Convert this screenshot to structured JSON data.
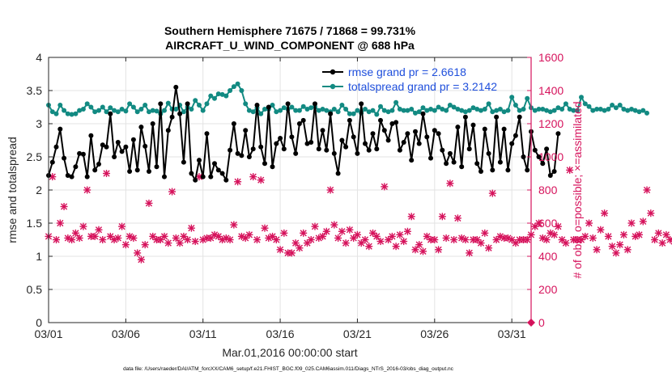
{
  "chart_data": {
    "type": "line",
    "title": [
      "Southern Hemisphere 71675 / 71868 = 99.731%",
      "AIRCRAFT_U_WIND_COMPONENT @ 688 hPa"
    ],
    "xlabel": "Mar.01,2016 00:00:00 start",
    "ylabel_left": "rmse and totalspread",
    "ylabel_right": "# of obs: o=possible; ×=assimilated",
    "footer": "data file: /Users/raeder/DAI/ATM_forcXX/CAM6_setup/f.e21.FHIST_BGC.f09_025.CAM6assim.011/Diags_NTrS_2016-03/obs_diag_output.nc",
    "xlim": [
      0,
      31.25
    ],
    "ylim_left": [
      0,
      4
    ],
    "ylim_right": [
      0,
      1600
    ],
    "xticks": [
      0,
      5,
      10,
      15,
      20,
      25,
      30
    ],
    "xtick_labels": [
      "03/01",
      "03/06",
      "03/11",
      "03/16",
      "03/21",
      "03/26",
      "03/31"
    ],
    "yticks_left": [
      0,
      0.5,
      1,
      1.5,
      2,
      2.5,
      3,
      3.5,
      4
    ],
    "ytick_labels_left": [
      "0",
      "0.5",
      "1",
      "1.5",
      "2",
      "2.5",
      "3",
      "3.5",
      "4"
    ],
    "yticks_right": [
      0,
      200,
      400,
      600,
      800,
      1000,
      1200,
      1400,
      1600
    ],
    "ytick_labels_right": [
      "0",
      "200",
      "400",
      "600",
      "800",
      "1000",
      "1200",
      "1400",
      "1600"
    ],
    "x_step_days": 0.25,
    "grid": true,
    "legend_position": "top-right",
    "colors": {
      "rmse": "#000000",
      "spread": "#128a82",
      "obs": "#d6135c",
      "legend_text": "#1f4fdc",
      "right_axis": "#d6135c",
      "grid": "#e3e3e3"
    },
    "series": [
      {
        "name": "rmse grand pr = 2.6618",
        "axis": "left",
        "values": [
          2.22,
          2.42,
          2.65,
          2.92,
          2.48,
          2.22,
          2.2,
          2.35,
          2.55,
          2.54,
          2.2,
          2.82,
          2.3,
          2.39,
          2.68,
          2.65,
          3.15,
          2.5,
          2.72,
          2.58,
          2.65,
          2.28,
          2.76,
          2.3,
          2.95,
          2.66,
          2.28,
          3.0,
          2.35,
          3.3,
          2.2,
          2.9,
          3.1,
          3.55,
          3.15,
          2.42,
          3.3,
          2.25,
          2.15,
          2.45,
          2.2,
          2.85,
          2.2,
          2.4,
          2.3,
          2.25,
          2.15,
          2.6,
          3.0,
          2.55,
          2.52,
          2.9,
          2.5,
          2.62,
          3.28,
          2.65,
          2.4,
          3.25,
          2.35,
          2.7,
          2.78,
          2.62,
          3.3,
          2.8,
          2.55,
          3.0,
          3.05,
          2.7,
          2.72,
          3.3,
          2.62,
          2.9,
          2.6,
          3.15,
          2.55,
          2.25,
          2.75,
          2.65,
          3.05,
          2.8,
          2.55,
          3.3,
          2.7,
          2.6,
          2.85,
          2.62,
          3.05,
          2.9,
          2.75,
          3.0,
          3.02,
          2.6,
          2.72,
          2.85,
          2.45,
          2.88,
          2.7,
          3.15,
          2.8,
          2.48,
          2.9,
          2.85,
          2.6,
          2.4,
          2.55,
          2.42,
          2.95,
          2.35,
          3.1,
          2.62,
          2.98,
          2.4,
          2.28,
          2.92,
          2.55,
          2.3,
          3.1,
          2.42,
          2.92,
          2.3,
          2.7,
          2.82,
          3.1,
          2.5,
          2.3,
          2.88,
          2.6,
          2.5,
          2.4,
          2.62,
          2.22,
          2.28,
          2.85
        ]
      },
      {
        "name": "totalspread grand pr = 3.2142",
        "axis": "left",
        "values": [
          3.28,
          3.18,
          3.15,
          3.28,
          3.2,
          3.15,
          3.14,
          3.15,
          3.2,
          3.22,
          3.3,
          3.25,
          3.18,
          3.2,
          3.25,
          3.18,
          3.24,
          3.2,
          3.18,
          3.22,
          3.19,
          3.3,
          3.25,
          3.18,
          3.22,
          3.28,
          3.18,
          3.2,
          3.19,
          3.15,
          3.2,
          3.31,
          3.22,
          3.22,
          3.28,
          3.18,
          3.25,
          3.22,
          3.35,
          3.28,
          3.2,
          3.3,
          3.42,
          3.38,
          3.45,
          3.44,
          3.42,
          3.5,
          3.56,
          3.6,
          3.5,
          3.3,
          3.2,
          3.18,
          3.24,
          3.15,
          3.22,
          3.22,
          3.28,
          3.18,
          3.2,
          3.24,
          3.22,
          3.25,
          3.2,
          3.2,
          3.26,
          3.22,
          3.24,
          3.26,
          3.2,
          3.22,
          3.2,
          3.18,
          3.22,
          3.18,
          3.28,
          3.22,
          3.15,
          3.15,
          3.2,
          3.16,
          3.22,
          3.18,
          3.2,
          3.14,
          3.26,
          3.2,
          3.18,
          3.2,
          3.32,
          3.22,
          3.2,
          3.2,
          3.22,
          3.16,
          3.18,
          3.24,
          3.2,
          3.22,
          3.2,
          3.25,
          3.22,
          3.2,
          3.28,
          3.25,
          3.22,
          3.2,
          3.18,
          3.2,
          3.24,
          3.22,
          3.2,
          3.22,
          3.3,
          3.18,
          3.2,
          3.22,
          3.18,
          3.2,
          3.4,
          3.28,
          3.2,
          3.22,
          3.38,
          3.24,
          3.2,
          3.22,
          3.22,
          3.2,
          3.18,
          3.2,
          3.24,
          3.22,
          3.3,
          3.22,
          3.2,
          3.2,
          3.4,
          3.3,
          3.26,
          3.2,
          3.22,
          3.22,
          3.2,
          3.22,
          3.28,
          3.24,
          3.28,
          3.22,
          3.2,
          3.22,
          3.2,
          3.18,
          3.2,
          3.16
        ]
      },
      {
        "name": "# of obs assimilated",
        "axis": "right",
        "values": [
          520,
          880,
          500,
          600,
          700,
          510,
          500,
          540,
          510,
          580,
          800,
          520,
          520,
          560,
          500,
          900,
          520,
          500,
          510,
          580,
          470,
          520,
          510,
          420,
          380,
          470,
          720,
          520,
          500,
          500,
          520,
          480,
          790,
          510,
          480,
          520,
          500,
          570,
          490,
          880,
          500,
          510,
          510,
          530,
          520,
          500,
          510,
          500,
          590,
          850,
          520,
          510,
          530,
          880,
          500,
          860,
          570,
          510,
          520,
          500,
          440,
          540,
          420,
          420,
          480,
          450,
          540,
          480,
          500,
          580,
          510,
          520,
          550,
          800,
          590,
          510,
          550,
          480,
          560,
          510,
          530,
          480,
          500,
          460,
          540,
          520,
          490,
          820,
          500,
          520,
          460,
          530,
          490,
          550,
          640,
          440,
          470,
          430,
          520,
          500,
          500,
          440,
          640,
          510,
          840,
          500,
          630,
          510,
          500,
          420,
          500,
          500,
          480,
          540,
          450,
          780,
          500,
          520,
          510,
          510,
          500,
          480,
          500,
          500,
          500,
          530,
          580,
          600,
          510,
          500,
          540,
          530,
          580,
          500,
          480,
          920,
          500,
          500,
          500,
          520,
          600,
          510,
          440,
          560,
          660,
          520,
          460,
          420,
          470,
          530,
          440,
          600,
          520,
          530,
          610,
          800,
          660,
          500,
          540,
          480,
          530,
          500,
          490,
          480,
          560,
          530,
          490,
          560,
          480,
          520,
          540,
          830,
          860,
          670,
          560,
          490
        ]
      }
    ],
    "last_obs_marker": {
      "x": 31.25,
      "value": 0
    },
    "legend": {
      "rmse_label": "rmse grand pr = 2.6618",
      "spread_label": "totalspread grand pr = 3.2142"
    }
  }
}
